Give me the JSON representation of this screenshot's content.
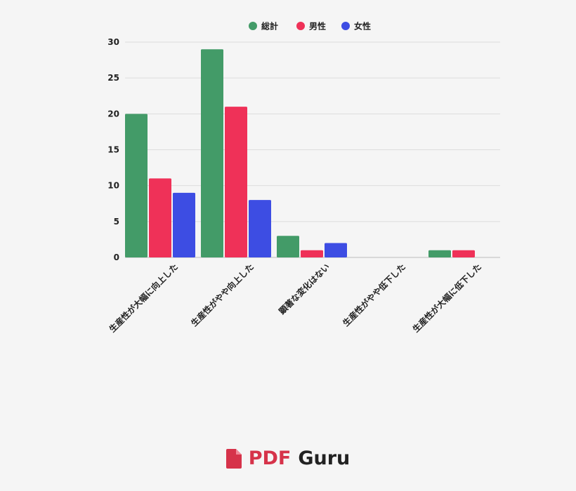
{
  "chart_data": {
    "type": "bar",
    "categories": [
      "生産性が大幅に向上した",
      "生産性がやや向上した",
      "顕著な変化はない",
      "生産性がやや低下した",
      "生産性が大幅に低下した"
    ],
    "series": [
      {
        "name": "総計",
        "color": "#439b68",
        "values": [
          20,
          29,
          3,
          0,
          1
        ]
      },
      {
        "name": "男性",
        "color": "#ef3158",
        "values": [
          11,
          21,
          1,
          0,
          1
        ]
      },
      {
        "name": "女性",
        "color": "#3d4de3",
        "values": [
          9,
          8,
          2,
          0,
          0
        ]
      }
    ],
    "yticks": [
      0,
      5,
      10,
      15,
      20,
      25,
      30
    ],
    "ylim": [
      0,
      30
    ],
    "grid": true,
    "legend_position": "top-center"
  },
  "brand": {
    "pdf": "PDF",
    "guru": "Guru",
    "logo_icon": "pdf-document-icon"
  }
}
